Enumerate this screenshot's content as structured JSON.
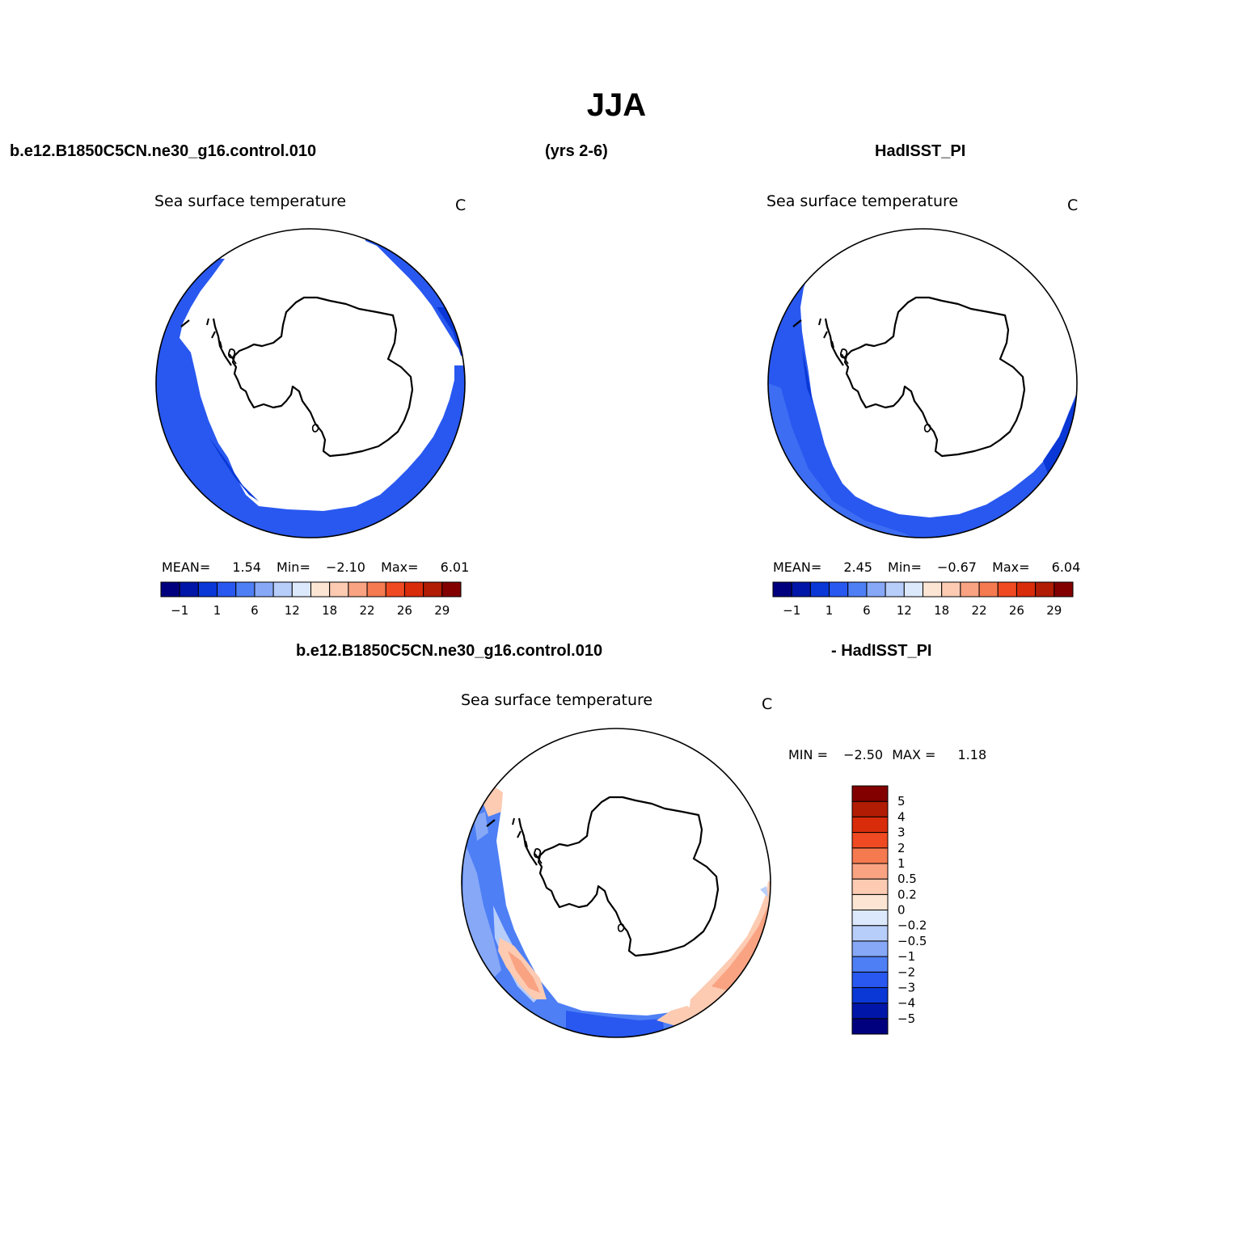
{
  "title": "JJA",
  "header": {
    "case_name": "b.e12.B1850C5CN.ne30_g16.control.010",
    "years": "(yrs 2-6)",
    "obs_name": "HadISST_PI"
  },
  "panel_model": {
    "var_label": "Sea surface temperature",
    "unit": "C",
    "stats": {
      "mean_label": "MEAN=",
      "mean": "1.54",
      "min_label": "Min=",
      "min": "−2.10",
      "max_label": "Max=",
      "max": "6.01"
    }
  },
  "panel_obs": {
    "var_label": "Sea surface temperature",
    "unit": "C",
    "stats": {
      "mean_label": "MEAN=",
      "mean": "2.45",
      "min_label": "Min=",
      "min": "−0.67",
      "max_label": "Max=",
      "max": "6.04"
    }
  },
  "diff_header": {
    "case_name": "b.e12.B1850C5CN.ne30_g16.control.010",
    "obs_name": "- HadISST_PI"
  },
  "panel_diff": {
    "var_label": "Sea surface temperature",
    "unit": "C",
    "stats": {
      "min_label": "MIN =",
      "min": "−2.50",
      "max_label": "MAX =",
      "max": "1.18"
    }
  },
  "colorbar_abs": {
    "colors": [
      "#00007f",
      "#0016a8",
      "#0a38d6",
      "#2958f0",
      "#4e7ff5",
      "#86a8f7",
      "#b7cdfa",
      "#dce8fb",
      "#fde5d3",
      "#fccbb2",
      "#f9a383",
      "#f57a50",
      "#ef4a21",
      "#d82c0b",
      "#b01c04",
      "#820000"
    ],
    "tick_labels": [
      "−1",
      "1",
      "6",
      "12",
      "18",
      "22",
      "26",
      "29"
    ]
  },
  "colorbar_diff": {
    "colors": [
      "#00007f",
      "#0016a8",
      "#0a38d6",
      "#2958f0",
      "#4e7ff5",
      "#86a8f7",
      "#b7cdfa",
      "#dce8fb",
      "#fde5d3",
      "#fccbb2",
      "#f9a383",
      "#f57a50",
      "#ef4a21",
      "#d82c0b",
      "#b01c04",
      "#820000"
    ],
    "tick_labels": [
      "−5",
      "−4",
      "−3",
      "−2",
      "−1",
      "−0.5",
      "−0.2",
      "0",
      "0.2",
      "0.5",
      "1",
      "2",
      "3",
      "4",
      "5"
    ]
  }
}
